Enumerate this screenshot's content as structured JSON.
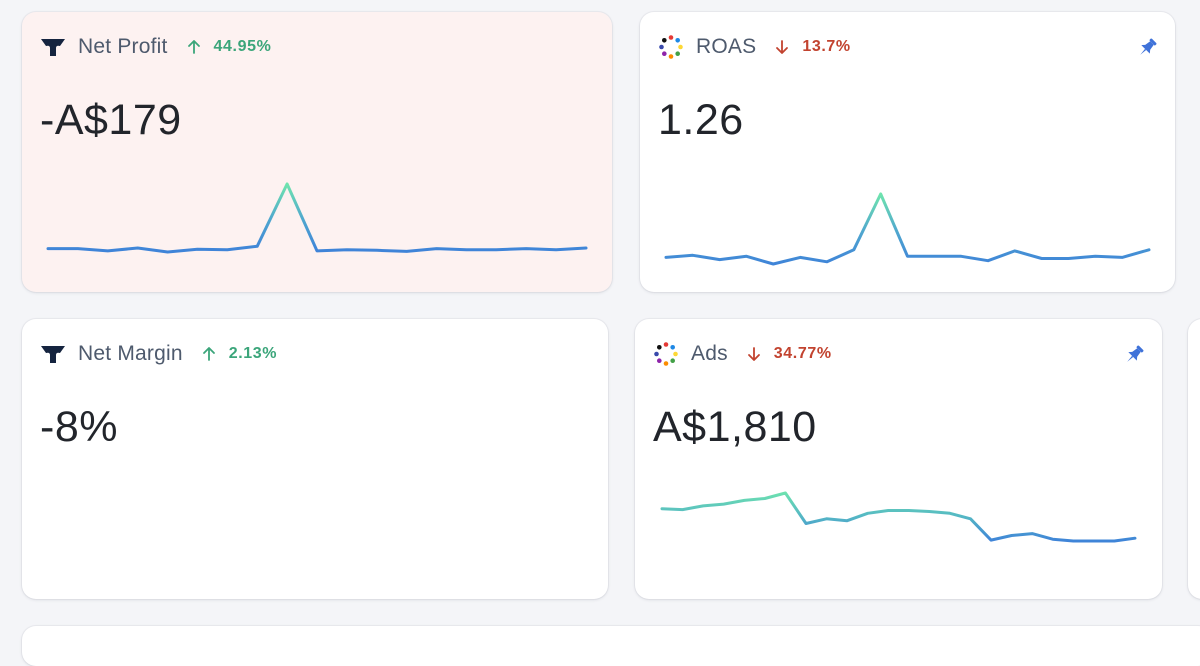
{
  "cards": [
    {
      "id": "net-profit",
      "title": "Net Profit",
      "source_icon": "triple-whale-logo-icon",
      "trend_direction": "up",
      "trend_value": "44.95%",
      "value": "-A$179",
      "highlight": true,
      "pinned": false,
      "sparkline": [
        3,
        3,
        1,
        3.5,
        0,
        2.5,
        2,
        5,
        60,
        1,
        2,
        1.5,
        0.5,
        3,
        2,
        2,
        3,
        2,
        3.5
      ]
    },
    {
      "id": "roas",
      "title": "ROAS",
      "source_icon": "multi-channel-dots-icon",
      "trend_direction": "down",
      "trend_value": "13.7%",
      "value": "1.26",
      "highlight": false,
      "pinned": true,
      "sparkline": [
        7,
        9,
        5,
        8,
        1,
        7,
        3,
        14,
        65,
        8,
        8,
        8,
        4,
        13,
        6,
        6,
        8,
        7,
        14
      ]
    },
    {
      "id": "net-margin",
      "title": "Net Margin",
      "source_icon": "triple-whale-logo-icon",
      "trend_direction": "up",
      "trend_value": "2.13%",
      "value": "-8%",
      "highlight": false,
      "pinned": false,
      "sparkline": []
    },
    {
      "id": "ads",
      "title": "Ads",
      "source_icon": "multi-channel-dots-icon",
      "trend_direction": "down",
      "trend_value": "34.77%",
      "value": "A$1,810",
      "highlight": false,
      "pinned": true,
      "sparkline": [
        27,
        26,
        30,
        32,
        36,
        38,
        44,
        11,
        16,
        14,
        22,
        25,
        25,
        24,
        22,
        16,
        -7,
        -2,
        0,
        -6,
        -8,
        -8,
        -8,
        -5
      ]
    }
  ],
  "colors": {
    "trend_up": "#3ba57a",
    "trend_down": "#c2432f",
    "spark_high": "#6fe4ae",
    "spark_low": "#3f84d8",
    "pin": "#3f72d9",
    "highlight_bg": "#fdf2f1"
  }
}
